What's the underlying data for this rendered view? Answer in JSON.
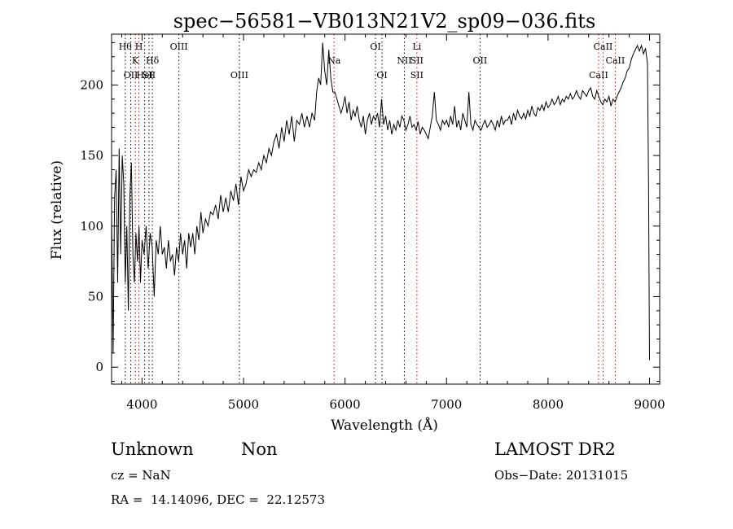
{
  "chart_data": {
    "type": "line",
    "title": "spec−56581−VB013N21V2_sp09−036.fits",
    "xlabel": "Wavelength (Å)",
    "ylabel": "Flux (relative)",
    "xlim": [
      3700,
      9100
    ],
    "ylim": [
      -12,
      236
    ],
    "xticks": [
      4000,
      5000,
      6000,
      7000,
      8000,
      9000
    ],
    "yticks": [
      0,
      50,
      100,
      150,
      200
    ],
    "grid": false,
    "series": [
      {
        "color": "#000000",
        "points": [
          [
            3700,
            110
          ],
          [
            3715,
            10
          ],
          [
            3730,
            120
          ],
          [
            3745,
            140
          ],
          [
            3760,
            60
          ],
          [
            3775,
            155
          ],
          [
            3790,
            80
          ],
          [
            3805,
            150
          ],
          [
            3820,
            130
          ],
          [
            3835,
            60
          ],
          [
            3850,
            100
          ],
          [
            3865,
            40
          ],
          [
            3880,
            120
          ],
          [
            3895,
            145
          ],
          [
            3910,
            80
          ],
          [
            3925,
            60
          ],
          [
            3940,
            95
          ],
          [
            3955,
            75
          ],
          [
            3970,
            100
          ],
          [
            3985,
            60
          ],
          [
            4000,
            90
          ],
          [
            4020,
            80
          ],
          [
            4040,
            100
          ],
          [
            4060,
            70
          ],
          [
            4080,
            95
          ],
          [
            4100,
            85
          ],
          [
            4120,
            50
          ],
          [
            4140,
            90
          ],
          [
            4160,
            80
          ],
          [
            4180,
            100
          ],
          [
            4200,
            80
          ],
          [
            4220,
            85
          ],
          [
            4240,
            70
          ],
          [
            4260,
            90
          ],
          [
            4280,
            75
          ],
          [
            4300,
            80
          ],
          [
            4320,
            65
          ],
          [
            4340,
            85
          ],
          [
            4360,
            75
          ],
          [
            4380,
            95
          ],
          [
            4400,
            80
          ],
          [
            4420,
            90
          ],
          [
            4440,
            70
          ],
          [
            4460,
            95
          ],
          [
            4480,
            85
          ],
          [
            4500,
            95
          ],
          [
            4520,
            80
          ],
          [
            4540,
            100
          ],
          [
            4560,
            90
          ],
          [
            4580,
            110
          ],
          [
            4600,
            95
          ],
          [
            4625,
            105
          ],
          [
            4650,
            100
          ],
          [
            4675,
            110
          ],
          [
            4700,
            108
          ],
          [
            4725,
            115
          ],
          [
            4750,
            105
          ],
          [
            4775,
            122
          ],
          [
            4800,
            110
          ],
          [
            4825,
            120
          ],
          [
            4850,
            110
          ],
          [
            4875,
            125
          ],
          [
            4900,
            118
          ],
          [
            4925,
            130
          ],
          [
            4950,
            115
          ],
          [
            4975,
            135
          ],
          [
            5000,
            125
          ],
          [
            5025,
            130
          ],
          [
            5050,
            140
          ],
          [
            5075,
            135
          ],
          [
            5100,
            140
          ],
          [
            5125,
            138
          ],
          [
            5150,
            145
          ],
          [
            5175,
            140
          ],
          [
            5200,
            150
          ],
          [
            5225,
            145
          ],
          [
            5250,
            155
          ],
          [
            5275,
            150
          ],
          [
            5300,
            160
          ],
          [
            5325,
            165
          ],
          [
            5350,
            155
          ],
          [
            5375,
            170
          ],
          [
            5400,
            160
          ],
          [
            5425,
            175
          ],
          [
            5450,
            165
          ],
          [
            5475,
            178
          ],
          [
            5500,
            160
          ],
          [
            5525,
            175
          ],
          [
            5550,
            172
          ],
          [
            5575,
            180
          ],
          [
            5600,
            170
          ],
          [
            5625,
            178
          ],
          [
            5650,
            170
          ],
          [
            5675,
            180
          ],
          [
            5700,
            175
          ],
          [
            5720,
            195
          ],
          [
            5740,
            205
          ],
          [
            5760,
            200
          ],
          [
            5780,
            230
          ],
          [
            5800,
            210
          ],
          [
            5820,
            200
          ],
          [
            5840,
            225
          ],
          [
            5860,
            205
          ],
          [
            5880,
            195
          ],
          [
            5900,
            195
          ],
          [
            5920,
            190
          ],
          [
            5940,
            185
          ],
          [
            5960,
            180
          ],
          [
            5980,
            185
          ],
          [
            6000,
            192
          ],
          [
            6020,
            180
          ],
          [
            6040,
            188
          ],
          [
            6060,
            175
          ],
          [
            6080,
            182
          ],
          [
            6100,
            178
          ],
          [
            6120,
            185
          ],
          [
            6140,
            175
          ],
          [
            6160,
            170
          ],
          [
            6180,
            178
          ],
          [
            6200,
            165
          ],
          [
            6220,
            175
          ],
          [
            6240,
            180
          ],
          [
            6260,
            172
          ],
          [
            6280,
            178
          ],
          [
            6300,
            175
          ],
          [
            6320,
            180
          ],
          [
            6340,
            170
          ],
          [
            6360,
            190
          ],
          [
            6380,
            172
          ],
          [
            6400,
            178
          ],
          [
            6420,
            168
          ],
          [
            6440,
            175
          ],
          [
            6460,
            165
          ],
          [
            6480,
            172
          ],
          [
            6500,
            168
          ],
          [
            6520,
            175
          ],
          [
            6540,
            170
          ],
          [
            6560,
            178
          ],
          [
            6580,
            175
          ],
          [
            6600,
            168
          ],
          [
            6620,
            172
          ],
          [
            6640,
            178
          ],
          [
            6660,
            170
          ],
          [
            6680,
            172
          ],
          [
            6700,
            168
          ],
          [
            6720,
            174
          ],
          [
            6740,
            165
          ],
          [
            6760,
            170
          ],
          [
            6780,
            168
          ],
          [
            6800,
            165
          ],
          [
            6820,
            162
          ],
          [
            6840,
            170
          ],
          [
            6860,
            178
          ],
          [
            6880,
            195
          ],
          [
            6900,
            175
          ],
          [
            6920,
            172
          ],
          [
            6940,
            168
          ],
          [
            6960,
            175
          ],
          [
            6980,
            172
          ],
          [
            7000,
            175
          ],
          [
            7020,
            170
          ],
          [
            7040,
            178
          ],
          [
            7060,
            172
          ],
          [
            7080,
            185
          ],
          [
            7100,
            170
          ],
          [
            7120,
            175
          ],
          [
            7140,
            168
          ],
          [
            7160,
            180
          ],
          [
            7180,
            175
          ],
          [
            7200,
            170
          ],
          [
            7220,
            195
          ],
          [
            7240,
            172
          ],
          [
            7260,
            168
          ],
          [
            7280,
            175
          ],
          [
            7300,
            172
          ],
          [
            7320,
            170
          ],
          [
            7340,
            168
          ],
          [
            7360,
            172
          ],
          [
            7380,
            175
          ],
          [
            7400,
            170
          ],
          [
            7420,
            172
          ],
          [
            7440,
            175
          ],
          [
            7460,
            172
          ],
          [
            7480,
            168
          ],
          [
            7500,
            175
          ],
          [
            7520,
            170
          ],
          [
            7540,
            178
          ],
          [
            7560,
            172
          ],
          [
            7580,
            175
          ],
          [
            7600,
            175
          ],
          [
            7620,
            178
          ],
          [
            7640,
            172
          ],
          [
            7660,
            180
          ],
          [
            7680,
            175
          ],
          [
            7700,
            182
          ],
          [
            7720,
            178
          ],
          [
            7740,
            176
          ],
          [
            7760,
            180
          ],
          [
            7780,
            176
          ],
          [
            7800,
            182
          ],
          [
            7820,
            178
          ],
          [
            7840,
            185
          ],
          [
            7860,
            180
          ],
          [
            7880,
            178
          ],
          [
            7900,
            184
          ],
          [
            7920,
            182
          ],
          [
            7940,
            186
          ],
          [
            7960,
            182
          ],
          [
            7980,
            188
          ],
          [
            8000,
            184
          ],
          [
            8020,
            186
          ],
          [
            8040,
            190
          ],
          [
            8060,
            186
          ],
          [
            8080,
            188
          ],
          [
            8100,
            192
          ],
          [
            8120,
            186
          ],
          [
            8140,
            190
          ],
          [
            8160,
            188
          ],
          [
            8180,
            192
          ],
          [
            8200,
            190
          ],
          [
            8220,
            194
          ],
          [
            8240,
            190
          ],
          [
            8260,
            192
          ],
          [
            8280,
            196
          ],
          [
            8300,
            192
          ],
          [
            8320,
            190
          ],
          [
            8340,
            196
          ],
          [
            8360,
            194
          ],
          [
            8380,
            192
          ],
          [
            8400,
            196
          ],
          [
            8420,
            198
          ],
          [
            8440,
            192
          ],
          [
            8460,
            190
          ],
          [
            8480,
            196
          ],
          [
            8500,
            192
          ],
          [
            8520,
            188
          ],
          [
            8540,
            186
          ],
          [
            8560,
            190
          ],
          [
            8580,
            188
          ],
          [
            8600,
            192
          ],
          [
            8620,
            185
          ],
          [
            8640,
            190
          ],
          [
            8660,
            188
          ],
          [
            8680,
            192
          ],
          [
            8700,
            195
          ],
          [
            8720,
            198
          ],
          [
            8740,
            202
          ],
          [
            8760,
            205
          ],
          [
            8780,
            210
          ],
          [
            8800,
            212
          ],
          [
            8820,
            218
          ],
          [
            8840,
            222
          ],
          [
            8860,
            225
          ],
          [
            8880,
            228
          ],
          [
            8900,
            224
          ],
          [
            8920,
            228
          ],
          [
            8940,
            222
          ],
          [
            8960,
            226
          ],
          [
            8980,
            215
          ],
          [
            8990,
            130
          ],
          [
            9000,
            5
          ]
        ]
      }
    ],
    "lines": [
      {
        "x": 3835,
        "color": "#000000",
        "labels": [
          {
            "text": "Hθ",
            "row": 0
          }
        ]
      },
      {
        "x": 3889,
        "color": "#000000",
        "labels": [
          {
            "text": "OII",
            "row": 2
          }
        ]
      },
      {
        "x": 3934,
        "color": "#cc0000",
        "labels": [
          {
            "text": "K",
            "row": 1
          }
        ]
      },
      {
        "x": 3969,
        "color": "#cc0000",
        "labels": [
          {
            "text": "H",
            "row": 0
          }
        ]
      },
      {
        "x": 4026,
        "color": "#000000",
        "labels": [
          {
            "text": "HeI",
            "row": 2
          }
        ]
      },
      {
        "x": 4069,
        "color": "#000000",
        "labels": [
          {
            "text": "SII",
            "row": 2
          }
        ]
      },
      {
        "x": 4102,
        "color": "#000000",
        "labels": [
          {
            "text": "Hδ",
            "row": 1
          }
        ]
      },
      {
        "x": 4363,
        "color": "#000000",
        "labels": [
          {
            "text": "OIII",
            "row": 0
          }
        ]
      },
      {
        "x": 4959,
        "color": "#000000",
        "labels": [
          {
            "text": "OIII",
            "row": 2
          }
        ]
      },
      {
        "x": 5892,
        "color": "#cc0000",
        "labels": [
          {
            "text": "Na",
            "row": 1
          }
        ]
      },
      {
        "x": 6300,
        "color": "#000000",
        "labels": [
          {
            "text": "OI",
            "row": 0
          }
        ]
      },
      {
        "x": 6364,
        "color": "#000000",
        "labels": [
          {
            "text": "OI",
            "row": 2
          }
        ]
      },
      {
        "x": 6584,
        "color": "#000000",
        "labels": [
          {
            "text": "NII",
            "row": 1
          }
        ]
      },
      {
        "x": 6708,
        "color": "#cc0000",
        "labels": [
          {
            "text": "Li",
            "row": 0
          },
          {
            "text": "SII",
            "row": 1
          },
          {
            "text": "SII",
            "row": 2
          }
        ]
      },
      {
        "x": 7330,
        "color": "#000000",
        "labels": [
          {
            "text": "OII",
            "row": 1
          }
        ]
      },
      {
        "x": 8498,
        "color": "#cc0000",
        "labels": [
          {
            "text": "CaII",
            "row": 2
          }
        ]
      },
      {
        "x": 8542,
        "color": "#cc0000",
        "labels": [
          {
            "text": "CaII",
            "row": 0
          }
        ]
      },
      {
        "x": 8662,
        "color": "#cc0000",
        "labels": [
          {
            "text": "CaII",
            "row": 1
          }
        ]
      }
    ]
  },
  "info": {
    "class": "Unknown",
    "subclass": "Non",
    "survey": "LAMOST DR2",
    "cz": "cz = NaN",
    "obsdate": "Obs−Date: 20131015",
    "radec": "RA =  14.14096, DEC =  22.12573"
  }
}
